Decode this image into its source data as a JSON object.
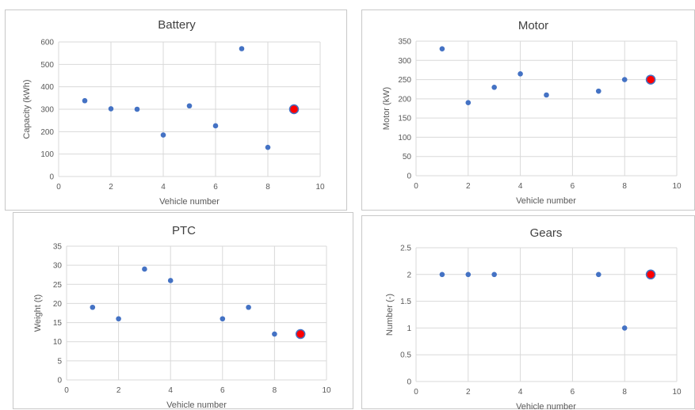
{
  "chart_data": [
    {
      "type": "scatter",
      "title": "Battery",
      "xlabel": "Vehicle number",
      "ylabel": "Capacity (kWh)",
      "xlim": [
        0,
        10
      ],
      "ylim": [
        0,
        600
      ],
      "xticks": [
        "0",
        "2",
        "4",
        "6",
        "8",
        "10"
      ],
      "yticks": [
        "0",
        "100",
        "200",
        "300",
        "400",
        "500",
        "600"
      ],
      "grid": true,
      "series": [
        {
          "color": "#4472c4",
          "points": [
            [
              1,
              338
            ],
            [
              2,
              302
            ],
            [
              3,
              300
            ],
            [
              4,
              185
            ],
            [
              5,
              315
            ],
            [
              6,
              226
            ],
            [
              7,
              570
            ],
            [
              8,
              130
            ]
          ]
        },
        {
          "color": "#ff0000",
          "edge": "#4472c4",
          "highlight": true,
          "points": [
            [
              9,
              300
            ]
          ]
        }
      ]
    },
    {
      "type": "scatter",
      "title": "Motor",
      "xlabel": "Vehicle number",
      "ylabel": "Motor (kW)",
      "xlim": [
        0,
        10
      ],
      "ylim": [
        0,
        350
      ],
      "xticks": [
        "0",
        "2",
        "4",
        "6",
        "8",
        "10"
      ],
      "yticks": [
        "0",
        "50",
        "100",
        "150",
        "200",
        "250",
        "300",
        "350"
      ],
      "grid": true,
      "series": [
        {
          "color": "#4472c4",
          "points": [
            [
              1,
              330
            ],
            [
              2,
              190
            ],
            [
              3,
              230
            ],
            [
              4,
              265
            ],
            [
              5,
              210
            ],
            [
              7,
              220
            ],
            [
              8,
              250
            ]
          ]
        },
        {
          "color": "#ff0000",
          "edge": "#4472c4",
          "highlight": true,
          "points": [
            [
              9,
              250
            ]
          ]
        }
      ]
    },
    {
      "type": "scatter",
      "title": "PTC",
      "xlabel": "Vehicle number",
      "ylabel": "Weight (t)",
      "xlim": [
        0,
        10
      ],
      "ylim": [
        0,
        35
      ],
      "xticks": [
        "0",
        "2",
        "4",
        "6",
        "8",
        "10"
      ],
      "yticks": [
        "0",
        "5",
        "10",
        "15",
        "20",
        "25",
        "30",
        "35"
      ],
      "grid": true,
      "series": [
        {
          "color": "#4472c4",
          "points": [
            [
              1,
              19
            ],
            [
              2,
              16
            ],
            [
              3,
              29
            ],
            [
              4,
              26
            ],
            [
              6,
              16
            ],
            [
              7,
              19
            ],
            [
              8,
              12
            ]
          ]
        },
        {
          "color": "#ff0000",
          "edge": "#4472c4",
          "highlight": true,
          "points": [
            [
              9,
              12
            ]
          ]
        }
      ]
    },
    {
      "type": "scatter",
      "title": "Gears",
      "xlabel": "Vehicle number",
      "ylabel": "Number (-)",
      "xlim": [
        0,
        10
      ],
      "ylim": [
        0,
        2.5
      ],
      "xticks": [
        "0",
        "2",
        "4",
        "6",
        "8",
        "10"
      ],
      "yticks": [
        "0",
        "0.5",
        "1",
        "1.5",
        "2",
        "2.5"
      ],
      "grid": true,
      "series": [
        {
          "color": "#4472c4",
          "points": [
            [
              1,
              2
            ],
            [
              2,
              2
            ],
            [
              3,
              2
            ],
            [
              7,
              2
            ],
            [
              8,
              1
            ]
          ]
        },
        {
          "color": "#ff0000",
          "edge": "#4472c4",
          "highlight": true,
          "points": [
            [
              9,
              2
            ]
          ]
        }
      ]
    }
  ]
}
